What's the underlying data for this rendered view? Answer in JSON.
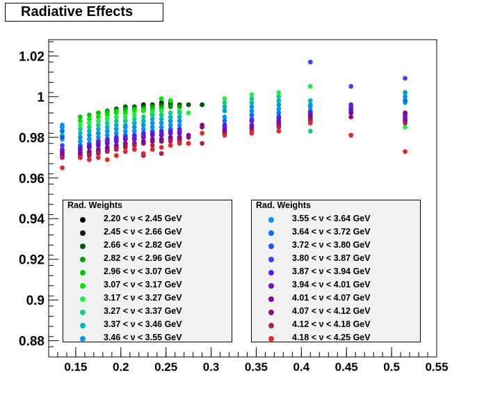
{
  "chart_data": {
    "type": "scatter",
    "title": "Radiative Effects",
    "xlabel": "",
    "ylabel": "",
    "xlim": [
      0.12,
      0.55
    ],
    "ylim": [
      0.872,
      1.028
    ],
    "x_ticks": [
      "0.15",
      "0.2",
      "0.25",
      "0.3",
      "0.35",
      "0.4",
      "0.45",
      "0.5",
      "0.55"
    ],
    "y_ticks": [
      "0.88",
      "0.9",
      "0.92",
      "0.94",
      "0.96",
      "0.98",
      "1",
      "1.02"
    ],
    "grid": false,
    "legends": [
      {
        "title": "Rad. Weights",
        "position": "bottom-left"
      },
      {
        "title": "Rad. Weights",
        "position": "bottom-right"
      }
    ],
    "series": [
      {
        "name": "2.20 < ν < 2.45 GeV",
        "color": "#000000",
        "x": [
          0.205,
          0.215,
          0.225,
          0.235,
          0.245,
          0.255
        ],
        "y": [
          0.995,
          0.995,
          0.996,
          0.996,
          0.997,
          0.997
        ]
      },
      {
        "name": "2.45 < ν < 2.66 GeV",
        "color": "#002000",
        "x": [
          0.205,
          0.215,
          0.225,
          0.235,
          0.245,
          0.255,
          0.265,
          0.275,
          0.29
        ],
        "y": [
          0.995,
          0.995,
          0.996,
          0.996,
          0.996,
          0.996,
          0.996,
          0.996,
          0.996
        ]
      },
      {
        "name": "2.66 < ν < 2.82 GeV",
        "color": "#005c00",
        "x": [
          0.195,
          0.205,
          0.215,
          0.225,
          0.235,
          0.245,
          0.255,
          0.265,
          0.275,
          0.29
        ],
        "y": [
          0.994,
          0.995,
          0.995,
          0.995,
          0.996,
          0.996,
          0.996,
          0.996,
          0.996,
          0.996
        ]
      },
      {
        "name": "2.82 < ν < 2.96 GeV",
        "color": "#00a000",
        "x": [
          0.175,
          0.185,
          0.195,
          0.205,
          0.215,
          0.225,
          0.235,
          0.245,
          0.255,
          0.265
        ],
        "y": [
          0.992,
          0.993,
          0.993,
          0.994,
          0.994,
          0.994,
          0.995,
          0.995,
          0.995,
          0.995
        ]
      },
      {
        "name": "2.96 < ν < 3.07 GeV",
        "color": "#00c800",
        "x": [
          0.155,
          0.165,
          0.175,
          0.185,
          0.195,
          0.205,
          0.215,
          0.225,
          0.235,
          0.245
        ],
        "y": [
          0.99,
          0.991,
          0.992,
          0.992,
          0.993,
          0.993,
          0.994,
          0.994,
          0.994,
          0.994
        ]
      },
      {
        "name": "3.07 < ν < 3.17 GeV",
        "color": "#00e600",
        "x": [
          0.155,
          0.165,
          0.175,
          0.185,
          0.195,
          0.205,
          0.215,
          0.225,
          0.235,
          0.245,
          0.255
        ],
        "y": [
          0.988,
          0.989,
          0.99,
          0.991,
          0.992,
          0.992,
          0.993,
          0.993,
          0.993,
          0.999,
          0.998
        ]
      },
      {
        "name": "3.17 < ν < 3.27 GeV",
        "color": "#22f040",
        "x": [
          0.135,
          0.155,
          0.165,
          0.175,
          0.185,
          0.195,
          0.205,
          0.215,
          0.235,
          0.245,
          0.265,
          0.275,
          0.315,
          0.345,
          0.375,
          0.41,
          0.515
        ],
        "y": [
          0.983,
          0.986,
          0.987,
          0.988,
          0.989,
          0.99,
          0.99,
          0.991,
          0.992,
          0.993,
          0.993,
          0.992,
          0.999,
          1.001,
          1.002,
          1.005,
          0.985
        ]
      },
      {
        "name": "3.27 < ν < 3.37 GeV",
        "color": "#10d080",
        "x": [
          0.135,
          0.155,
          0.165,
          0.175,
          0.185,
          0.195,
          0.205,
          0.215,
          0.225,
          0.235,
          0.245,
          0.255,
          0.265,
          0.315,
          0.345,
          0.375,
          0.41
        ],
        "y": [
          0.981,
          0.984,
          0.985,
          0.986,
          0.987,
          0.988,
          0.988,
          0.989,
          0.99,
          0.991,
          0.991,
          0.992,
          0.992,
          0.997,
          0.999,
          1.0,
          0.983
        ]
      },
      {
        "name": "3.37 < ν < 3.46 GeV",
        "color": "#00b8b8",
        "x": [
          0.135,
          0.155,
          0.165,
          0.175,
          0.185,
          0.195,
          0.205,
          0.215,
          0.225,
          0.235,
          0.245,
          0.255,
          0.265,
          0.315,
          0.345,
          0.375,
          0.41,
          0.515
        ],
        "y": [
          0.979,
          0.982,
          0.983,
          0.984,
          0.985,
          0.986,
          0.986,
          0.987,
          0.988,
          0.989,
          0.989,
          0.99,
          0.99,
          0.995,
          0.997,
          0.998,
          0.998,
          0.997
        ]
      },
      {
        "name": "3.46 < ν < 3.55 GeV",
        "color": "#0098d8",
        "x": [
          0.135,
          0.155,
          0.165,
          0.175,
          0.185,
          0.195,
          0.205,
          0.215,
          0.225,
          0.235,
          0.245,
          0.255,
          0.265,
          0.315,
          0.345,
          0.375,
          0.41,
          0.455,
          0.515
        ],
        "y": [
          0.985,
          0.98,
          0.981,
          0.982,
          0.983,
          0.984,
          0.985,
          0.985,
          0.986,
          0.987,
          0.987,
          0.988,
          0.988,
          0.993,
          0.995,
          0.996,
          0.996,
          0.995,
          1.002
        ]
      },
      {
        "name": "3.55 < ν < 3.64 GeV",
        "color": "#0090ff",
        "x": [
          0.135,
          0.155,
          0.165,
          0.175,
          0.185,
          0.195,
          0.205,
          0.215,
          0.225,
          0.235,
          0.245,
          0.255,
          0.265,
          0.315,
          0.345,
          0.375,
          0.41,
          0.455,
          0.515
        ],
        "y": [
          0.986,
          0.978,
          0.979,
          0.98,
          0.981,
          0.982,
          0.983,
          0.983,
          0.984,
          0.985,
          0.985,
          0.986,
          0.986,
          0.99,
          0.993,
          0.994,
          0.995,
          0.996,
          1.0
        ]
      },
      {
        "name": "3.64 < ν < 3.72 GeV",
        "color": "#0070ff",
        "x": [
          0.135,
          0.155,
          0.165,
          0.175,
          0.185,
          0.195,
          0.205,
          0.215,
          0.225,
          0.235,
          0.245,
          0.255,
          0.265,
          0.315,
          0.345,
          0.375,
          0.41,
          0.455,
          0.515
        ],
        "y": [
          0.983,
          0.976,
          0.977,
          0.978,
          0.979,
          0.98,
          0.981,
          0.981,
          0.982,
          0.983,
          0.983,
          0.984,
          0.984,
          0.988,
          0.991,
          0.992,
          0.993,
          0.994,
          0.998
        ]
      },
      {
        "name": "3.72 < ν < 3.80 GeV",
        "color": "#2050ff",
        "x": [
          0.135,
          0.155,
          0.165,
          0.175,
          0.185,
          0.195,
          0.205,
          0.215,
          0.225,
          0.235,
          0.245,
          0.255,
          0.265,
          0.315,
          0.345,
          0.375,
          0.41,
          0.455,
          0.515
        ],
        "y": [
          0.98,
          0.975,
          0.976,
          0.977,
          0.978,
          0.979,
          0.98,
          0.98,
          0.981,
          0.982,
          0.982,
          0.983,
          0.983,
          0.986,
          0.989,
          0.99,
          0.992,
          0.993,
          0.99
        ]
      },
      {
        "name": "3.80 < ν < 3.87 GeV",
        "color": "#4040ff",
        "x": [
          0.135,
          0.155,
          0.165,
          0.175,
          0.185,
          0.195,
          0.205,
          0.215,
          0.225,
          0.235,
          0.245,
          0.255,
          0.265,
          0.315,
          0.345,
          0.375,
          0.41,
          0.455,
          0.515
        ],
        "y": [
          0.976,
          0.973,
          0.975,
          0.976,
          0.977,
          0.978,
          0.979,
          0.979,
          0.98,
          0.981,
          0.981,
          0.982,
          0.982,
          0.985,
          0.988,
          0.989,
          1.017,
          1.005,
          1.009
        ]
      },
      {
        "name": "3.87 < ν < 3.94 GeV",
        "color": "#5a1ee6",
        "x": [
          0.135,
          0.155,
          0.165,
          0.175,
          0.185,
          0.195,
          0.205,
          0.215,
          0.225,
          0.235,
          0.245,
          0.255,
          0.265,
          0.315,
          0.345,
          0.375,
          0.41,
          0.455,
          0.515
        ],
        "y": [
          0.974,
          0.975,
          0.976,
          0.978,
          0.979,
          0.98,
          0.98,
          0.981,
          0.982,
          0.982,
          0.983,
          0.983,
          0.984,
          0.986,
          0.988,
          0.99,
          0.992,
          0.996,
          0.991
        ]
      },
      {
        "name": "3.94 < ν < 4.01 GeV",
        "color": "#7010c8",
        "x": [
          0.135,
          0.155,
          0.165,
          0.175,
          0.185,
          0.195,
          0.205,
          0.215,
          0.225,
          0.235,
          0.245,
          0.255,
          0.265,
          0.315,
          0.345,
          0.375,
          0.41,
          0.455,
          0.515
        ],
        "y": [
          0.973,
          0.974,
          0.975,
          0.976,
          0.977,
          0.978,
          0.979,
          0.979,
          0.98,
          0.981,
          0.981,
          0.982,
          0.982,
          0.984,
          0.986,
          0.988,
          0.991,
          0.994,
          0.989
        ]
      },
      {
        "name": "4.01 < ν < 4.07 GeV",
        "color": "#7a08a0",
        "x": [
          0.135,
          0.155,
          0.165,
          0.175,
          0.185,
          0.195,
          0.205,
          0.215,
          0.225,
          0.235,
          0.245,
          0.255,
          0.265,
          0.275,
          0.29,
          0.315,
          0.345,
          0.375,
          0.41,
          0.455,
          0.515
        ],
        "y": [
          0.972,
          0.972,
          0.973,
          0.974,
          0.975,
          0.976,
          0.977,
          0.977,
          0.978,
          0.979,
          0.979,
          0.98,
          0.98,
          0.981,
          0.986,
          0.983,
          0.985,
          0.987,
          0.99,
          0.992,
          0.988
        ]
      },
      {
        "name": "4.07 < ν < 4.12 GeV",
        "color": "#8c1070",
        "x": [
          0.135,
          0.155,
          0.165,
          0.175,
          0.185,
          0.195,
          0.205,
          0.215,
          0.225,
          0.235,
          0.245,
          0.255,
          0.265,
          0.275,
          0.29,
          0.315,
          0.345,
          0.375,
          0.41,
          0.455,
          0.515
        ],
        "y": [
          0.971,
          0.971,
          0.972,
          0.973,
          0.974,
          0.975,
          0.976,
          0.976,
          0.977,
          0.978,
          0.978,
          0.979,
          0.979,
          0.98,
          0.985,
          0.982,
          0.984,
          0.986,
          0.989,
          0.99,
          0.992
        ]
      },
      {
        "name": "4.12 < ν < 4.18 GeV",
        "color": "#b01e5a",
        "x": [
          0.135,
          0.155,
          0.165,
          0.175,
          0.185,
          0.195,
          0.205,
          0.215,
          0.225,
          0.235,
          0.245,
          0.255,
          0.265,
          0.275,
          0.29,
          0.315,
          0.345,
          0.375,
          0.41,
          0.455,
          0.515
        ],
        "y": [
          0.97,
          0.97,
          0.971,
          0.972,
          0.973,
          0.974,
          0.975,
          0.976,
          0.971,
          0.976,
          0.972,
          0.978,
          0.978,
          0.977,
          0.977,
          0.981,
          0.983,
          0.985,
          0.988,
          0.981,
          0.987
        ]
      },
      {
        "name": "4.18 < ν < 4.25 GeV",
        "color": "#e02828",
        "x": [
          0.135,
          0.155,
          0.165,
          0.175,
          0.185,
          0.195,
          0.205,
          0.215,
          0.225,
          0.235,
          0.245,
          0.255,
          0.265,
          0.275,
          0.29,
          0.315,
          0.345,
          0.375,
          0.41,
          0.455,
          0.515
        ],
        "y": [
          0.965,
          0.97,
          0.969,
          0.97,
          0.969,
          0.971,
          0.973,
          0.974,
          0.972,
          0.974,
          0.975,
          0.976,
          0.977,
          0.977,
          0.982,
          0.981,
          0.982,
          0.983,
          0.987,
          0.981,
          0.973
        ]
      }
    ]
  }
}
